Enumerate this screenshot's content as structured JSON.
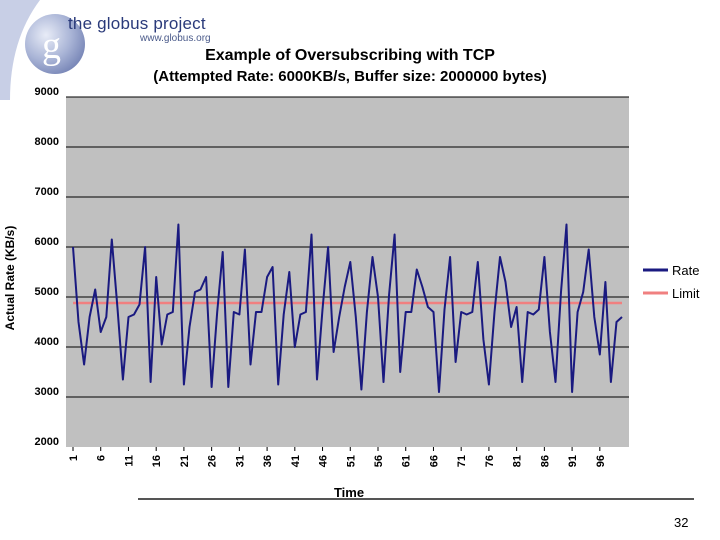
{
  "logo": {
    "title": "the globus project",
    "url": "www.globus.org",
    "mark": "g"
  },
  "page_number": "32",
  "colors": {
    "rate": "#1a1a80",
    "limit": "#f08080",
    "plot_bg": "#c0c0c0"
  },
  "chart_data": {
    "type": "line",
    "title": "Example of Oversubscribing with TCP",
    "subtitle": "(Attempted Rate: 6000KB/s, Buffer size: 2000000 bytes)",
    "xlabel": "Time",
    "ylabel": "Actual Rate (KB/s)",
    "ylim": [
      2000,
      9000
    ],
    "yticks": [
      2000,
      3000,
      4000,
      5000,
      6000,
      7000,
      8000,
      9000
    ],
    "xlim": [
      1,
      100
    ],
    "xtick_labels": [
      "1",
      "6",
      "11",
      "16",
      "21",
      "26",
      "31",
      "36",
      "41",
      "46",
      "51",
      "56",
      "61",
      "66",
      "71",
      "76",
      "81",
      "86",
      "91",
      "96"
    ],
    "legend": [
      "Rate",
      "Limit"
    ],
    "legend_position": "right",
    "grid": true,
    "series": [
      {
        "name": "Rate",
        "x": [
          1,
          2,
          3,
          4,
          5,
          6,
          7,
          8,
          9,
          10,
          11,
          12,
          13,
          14,
          15,
          16,
          17,
          18,
          19,
          20,
          21,
          22,
          23,
          24,
          25,
          26,
          27,
          28,
          29,
          30,
          31,
          32,
          33,
          34,
          35,
          36,
          37,
          38,
          39,
          40,
          41,
          42,
          43,
          44,
          45,
          46,
          47,
          48,
          49,
          50,
          51,
          52,
          53,
          54,
          55,
          56,
          57,
          58,
          59,
          60,
          61,
          62,
          63,
          64,
          65,
          66,
          67,
          68,
          69,
          70,
          71,
          72,
          73,
          74,
          75,
          76,
          77,
          78,
          79,
          80,
          81,
          82,
          83,
          84,
          85,
          86,
          87,
          88,
          89,
          90,
          91,
          92,
          93,
          94,
          95,
          96,
          97,
          98,
          99,
          100
        ],
        "values": [
          6000,
          4500,
          3650,
          4600,
          5150,
          4300,
          4600,
          6150,
          4800,
          3350,
          4600,
          4650,
          4850,
          6000,
          3300,
          5400,
          4050,
          4650,
          4700,
          6450,
          3250,
          4400,
          5100,
          5150,
          5400,
          3200,
          4700,
          5900,
          3200,
          4700,
          4650,
          5950,
          3650,
          4700,
          4700,
          5400,
          5600,
          3250,
          4650,
          5500,
          4000,
          4650,
          4700,
          6250,
          3350,
          4750,
          6000,
          3900,
          4600,
          5200,
          5700,
          4600,
          3150,
          4700,
          5800,
          5000,
          3300,
          5050,
          6250,
          3500,
          4700,
          4700,
          5550,
          5200,
          4800,
          4700,
          3100,
          4750,
          5800,
          3700,
          4700,
          4650,
          4700,
          5700,
          4150,
          3250,
          4700,
          5800,
          5300,
          4400,
          4800,
          3300,
          4700,
          4650,
          4750,
          5800,
          4300,
          3300,
          5100,
          6450,
          3100,
          4700,
          5100,
          5950,
          4600,
          3850,
          5300,
          3300,
          4500,
          4600
        ],
        "color": "#1a1a80"
      },
      {
        "name": "Limit",
        "x": [
          1,
          100
        ],
        "values": [
          4880,
          4880
        ],
        "color": "#f08080"
      }
    ]
  }
}
